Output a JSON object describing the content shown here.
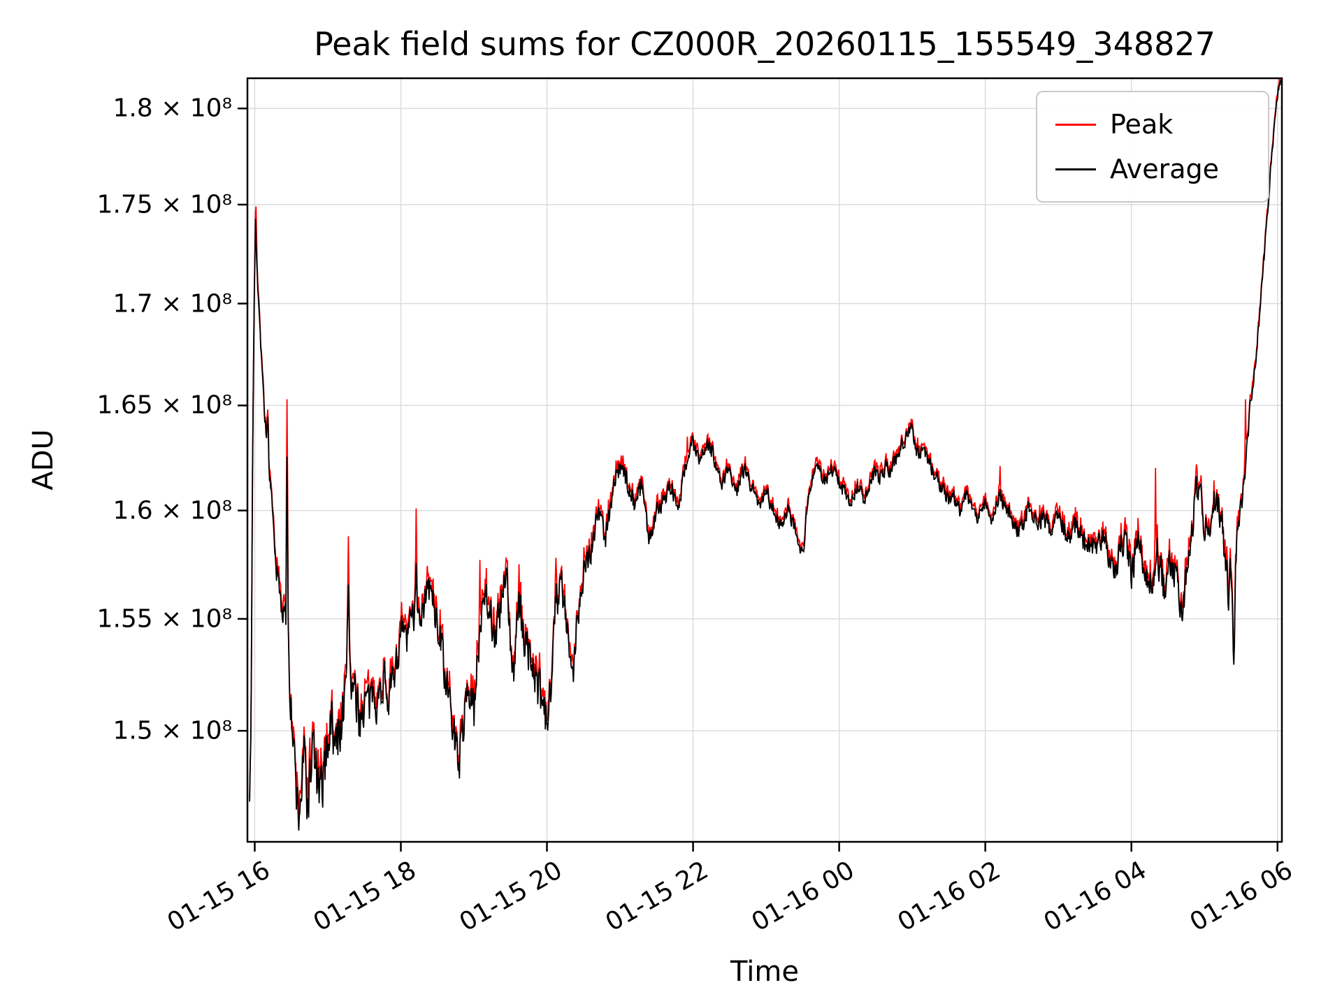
{
  "title": "Peak field sums for CZ000R_20260115_155549_348827",
  "chart_data": {
    "type": "line",
    "title": "Peak field sums for CZ000R_20260115_155549_348827",
    "xlabel": "Time",
    "ylabel": "ADU",
    "y_scale": "log",
    "grid": true,
    "legend_position": "upper right",
    "ylim": [
      145200000,
      181600000
    ],
    "xlim_hours": [
      15.9,
      30.06
    ],
    "x_ticks": [
      {
        "hour": 16,
        "label": "01-15 16"
      },
      {
        "hour": 18,
        "label": "01-15 18"
      },
      {
        "hour": 20,
        "label": "01-15 20"
      },
      {
        "hour": 22,
        "label": "01-15 22"
      },
      {
        "hour": 24,
        "label": "01-16 00"
      },
      {
        "hour": 26,
        "label": "01-16 02"
      },
      {
        "hour": 28,
        "label": "01-16 04"
      },
      {
        "hour": 30,
        "label": "01-16 06"
      }
    ],
    "y_ticks": [
      {
        "value": 180000000,
        "label": "1.8 × 10⁸"
      },
      {
        "value": 175000000,
        "label": "1.75 × 10⁸"
      },
      {
        "value": 170000000,
        "label": "1.7 × 10⁸"
      },
      {
        "value": 165000000,
        "label": "1.65 × 10⁸"
      },
      {
        "value": 160000000,
        "label": "1.6 × 10⁸"
      },
      {
        "value": 155000000,
        "label": "1.55 × 10⁸"
      },
      {
        "value": 150000000,
        "label": "1.5 × 10⁸"
      }
    ],
    "legend": [
      {
        "name": "Peak",
        "color": "#ff0000"
      },
      {
        "name": "Average",
        "color": "#000000"
      }
    ],
    "value_unit": 100000000,
    "sample_step_hours": 0.008,
    "noise_seed": 7,
    "peak_offset": 0.0015,
    "average_anchors": [
      [
        15.93,
        1.472
      ],
      [
        15.95,
        1.5
      ],
      [
        15.97,
        1.62
      ],
      [
        15.99,
        1.695
      ],
      [
        16.01,
        1.745
      ],
      [
        16.03,
        1.72
      ],
      [
        16.06,
        1.695
      ],
      [
        16.08,
        1.68
      ],
      [
        16.1,
        1.672
      ],
      [
        16.13,
        1.648
      ],
      [
        16.16,
        1.635
      ],
      [
        16.18,
        1.645
      ],
      [
        16.2,
        1.615
      ],
      [
        16.24,
        1.6
      ],
      [
        16.28,
        1.577
      ],
      [
        16.32,
        1.568
      ],
      [
        16.36,
        1.557
      ],
      [
        16.4,
        1.552
      ],
      [
        16.43,
        1.548
      ],
      [
        16.44,
        1.638
      ],
      [
        16.46,
        1.545
      ],
      [
        16.48,
        1.52
      ],
      [
        16.52,
        1.497
      ],
      [
        16.56,
        1.478
      ],
      [
        16.6,
        1.462
      ],
      [
        16.64,
        1.475
      ],
      [
        16.68,
        1.49
      ],
      [
        16.72,
        1.468
      ],
      [
        16.76,
        1.48
      ],
      [
        16.8,
        1.495
      ],
      [
        16.85,
        1.478
      ],
      [
        16.9,
        1.469
      ],
      [
        16.95,
        1.482
      ],
      [
        17.0,
        1.498
      ],
      [
        17.05,
        1.505
      ],
      [
        17.1,
        1.492
      ],
      [
        17.15,
        1.499
      ],
      [
        17.2,
        1.508
      ],
      [
        17.25,
        1.515
      ],
      [
        17.28,
        1.568
      ],
      [
        17.31,
        1.525
      ],
      [
        17.38,
        1.512
      ],
      [
        17.43,
        1.505
      ],
      [
        17.48,
        1.51
      ],
      [
        17.53,
        1.515
      ],
      [
        17.58,
        1.508
      ],
      [
        17.63,
        1.52
      ],
      [
        17.68,
        1.513
      ],
      [
        17.73,
        1.518
      ],
      [
        17.78,
        1.525
      ],
      [
        17.83,
        1.515
      ],
      [
        17.88,
        1.52
      ],
      [
        17.93,
        1.53
      ],
      [
        17.98,
        1.538
      ],
      [
        18.03,
        1.545
      ],
      [
        18.08,
        1.54
      ],
      [
        18.13,
        1.548
      ],
      [
        18.18,
        1.552
      ],
      [
        18.21,
        1.578
      ],
      [
        18.24,
        1.55
      ],
      [
        18.3,
        1.555
      ],
      [
        18.35,
        1.56
      ],
      [
        18.4,
        1.565
      ],
      [
        18.45,
        1.555
      ],
      [
        18.5,
        1.548
      ],
      [
        18.55,
        1.54
      ],
      [
        18.6,
        1.525
      ],
      [
        18.65,
        1.515
      ],
      [
        18.7,
        1.505
      ],
      [
        18.75,
        1.495
      ],
      [
        18.8,
        1.488
      ],
      [
        18.85,
        1.5
      ],
      [
        18.9,
        1.52
      ],
      [
        18.95,
        1.515
      ],
      [
        19.0,
        1.508
      ],
      [
        19.05,
        1.53
      ],
      [
        19.1,
        1.555
      ],
      [
        19.15,
        1.565
      ],
      [
        19.2,
        1.558
      ],
      [
        19.25,
        1.548
      ],
      [
        19.3,
        1.543
      ],
      [
        19.35,
        1.55
      ],
      [
        19.4,
        1.562
      ],
      [
        19.45,
        1.568
      ],
      [
        19.5,
        1.535
      ],
      [
        19.55,
        1.528
      ],
      [
        19.6,
        1.555
      ],
      [
        19.65,
        1.548
      ],
      [
        19.7,
        1.54
      ],
      [
        19.75,
        1.535
      ],
      [
        19.8,
        1.53
      ],
      [
        19.85,
        1.522
      ],
      [
        19.9,
        1.515
      ],
      [
        19.95,
        1.508
      ],
      [
        20.0,
        1.502
      ],
      [
        20.05,
        1.52
      ],
      [
        20.1,
        1.558
      ],
      [
        20.15,
        1.562
      ],
      [
        20.2,
        1.565
      ],
      [
        20.25,
        1.55
      ],
      [
        20.3,
        1.538
      ],
      [
        20.35,
        1.518
      ],
      [
        20.4,
        1.545
      ],
      [
        20.45,
        1.562
      ],
      [
        20.5,
        1.572
      ],
      [
        20.55,
        1.578
      ],
      [
        20.6,
        1.582
      ],
      [
        20.65,
        1.59
      ],
      [
        20.7,
        1.6
      ],
      [
        20.75,
        1.595
      ],
      [
        20.8,
        1.588
      ],
      [
        20.85,
        1.598
      ],
      [
        20.9,
        1.61
      ],
      [
        20.95,
        1.617
      ],
      [
        21.0,
        1.62
      ],
      [
        21.05,
        1.617
      ],
      [
        21.1,
        1.613
      ],
      [
        21.15,
        1.608
      ],
      [
        21.2,
        1.604
      ],
      [
        21.25,
        1.608
      ],
      [
        21.3,
        1.612
      ],
      [
        21.35,
        1.6
      ],
      [
        21.4,
        1.585
      ],
      [
        21.45,
        1.592
      ],
      [
        21.5,
        1.6
      ],
      [
        21.55,
        1.603
      ],
      [
        21.6,
        1.606
      ],
      [
        21.65,
        1.61
      ],
      [
        21.7,
        1.612
      ],
      [
        21.75,
        1.605
      ],
      [
        21.8,
        1.6
      ],
      [
        21.85,
        1.612
      ],
      [
        21.9,
        1.622
      ],
      [
        21.95,
        1.628
      ],
      [
        22.0,
        1.632
      ],
      [
        22.05,
        1.626
      ],
      [
        22.1,
        1.622
      ],
      [
        22.15,
        1.628
      ],
      [
        22.2,
        1.632
      ],
      [
        22.25,
        1.628
      ],
      [
        22.3,
        1.624
      ],
      [
        22.35,
        1.618
      ],
      [
        22.4,
        1.613
      ],
      [
        22.45,
        1.618
      ],
      [
        22.5,
        1.622
      ],
      [
        22.55,
        1.612
      ],
      [
        22.6,
        1.608
      ],
      [
        22.65,
        1.615
      ],
      [
        22.7,
        1.62
      ],
      [
        22.75,
        1.615
      ],
      [
        22.8,
        1.612
      ],
      [
        22.85,
        1.606
      ],
      [
        22.9,
        1.602
      ],
      [
        22.95,
        1.607
      ],
      [
        23.0,
        1.61
      ],
      [
        23.05,
        1.604
      ],
      [
        23.1,
        1.6
      ],
      [
        23.15,
        1.596
      ],
      [
        23.2,
        1.592
      ],
      [
        23.25,
        1.598
      ],
      [
        23.3,
        1.602
      ],
      [
        23.35,
        1.596
      ],
      [
        23.4,
        1.592
      ],
      [
        23.45,
        1.586
      ],
      [
        23.5,
        1.578
      ],
      [
        23.55,
        1.596
      ],
      [
        23.6,
        1.612
      ],
      [
        23.65,
        1.618
      ],
      [
        23.7,
        1.622
      ],
      [
        23.75,
        1.617
      ],
      [
        23.8,
        1.613
      ],
      [
        23.85,
        1.617
      ],
      [
        23.9,
        1.62
      ],
      [
        23.95,
        1.616
      ],
      [
        24.0,
        1.613
      ],
      [
        24.05,
        1.61
      ],
      [
        24.1,
        1.607
      ],
      [
        24.15,
        1.604
      ],
      [
        24.2,
        1.608
      ],
      [
        24.25,
        1.612
      ],
      [
        24.3,
        1.608
      ],
      [
        24.35,
        1.605
      ],
      [
        24.4,
        1.61
      ],
      [
        24.45,
        1.615
      ],
      [
        24.5,
        1.618
      ],
      [
        24.55,
        1.614
      ],
      [
        24.6,
        1.618
      ],
      [
        24.65,
        1.622
      ],
      [
        24.7,
        1.618
      ],
      [
        24.75,
        1.622
      ],
      [
        24.8,
        1.626
      ],
      [
        24.85,
        1.63
      ],
      [
        24.9,
        1.634
      ],
      [
        24.95,
        1.638
      ],
      [
        25.0,
        1.64
      ],
      [
        25.05,
        1.63
      ],
      [
        25.1,
        1.625
      ],
      [
        25.15,
        1.63
      ],
      [
        25.2,
        1.626
      ],
      [
        25.25,
        1.622
      ],
      [
        25.3,
        1.618
      ],
      [
        25.35,
        1.614
      ],
      [
        25.4,
        1.612
      ],
      [
        25.45,
        1.608
      ],
      [
        25.5,
        1.605
      ],
      [
        25.55,
        1.608
      ],
      [
        25.6,
        1.604
      ],
      [
        25.65,
        1.6
      ],
      [
        25.7,
        1.605
      ],
      [
        25.75,
        1.608
      ],
      [
        25.8,
        1.604
      ],
      [
        25.85,
        1.6
      ],
      [
        25.9,
        1.597
      ],
      [
        25.95,
        1.6
      ],
      [
        26.0,
        1.603
      ],
      [
        26.05,
        1.6
      ],
      [
        26.1,
        1.597
      ],
      [
        26.15,
        1.6
      ],
      [
        26.2,
        1.608
      ],
      [
        26.25,
        1.603
      ],
      [
        26.3,
        1.6
      ],
      [
        26.35,
        1.597
      ],
      [
        26.4,
        1.594
      ],
      [
        26.45,
        1.59
      ],
      [
        26.5,
        1.593
      ],
      [
        26.55,
        1.597
      ],
      [
        26.6,
        1.6
      ],
      [
        26.65,
        1.596
      ],
      [
        26.7,
        1.592
      ],
      [
        26.75,
        1.595
      ],
      [
        26.8,
        1.598
      ],
      [
        26.85,
        1.594
      ],
      [
        26.9,
        1.59
      ],
      [
        26.95,
        1.594
      ],
      [
        27.0,
        1.598
      ],
      [
        27.05,
        1.594
      ],
      [
        27.1,
        1.59
      ],
      [
        27.15,
        1.586
      ],
      [
        27.2,
        1.59
      ],
      [
        27.25,
        1.594
      ],
      [
        27.3,
        1.59
      ],
      [
        27.35,
        1.586
      ],
      [
        27.4,
        1.582
      ],
      [
        27.45,
        1.586
      ],
      [
        27.5,
        1.582
      ],
      [
        27.55,
        1.586
      ],
      [
        27.6,
        1.59
      ],
      [
        27.65,
        1.584
      ],
      [
        27.7,
        1.578
      ],
      [
        27.75,
        1.572
      ],
      [
        27.8,
        1.576
      ],
      [
        27.85,
        1.582
      ],
      [
        27.9,
        1.586
      ],
      [
        27.95,
        1.578
      ],
      [
        28.0,
        1.572
      ],
      [
        28.05,
        1.58
      ],
      [
        28.1,
        1.588
      ],
      [
        28.15,
        1.58
      ],
      [
        28.2,
        1.572
      ],
      [
        28.25,
        1.565
      ],
      [
        28.3,
        1.572
      ],
      [
        28.35,
        1.58
      ],
      [
        28.4,
        1.572
      ],
      [
        28.45,
        1.562
      ],
      [
        28.5,
        1.57
      ],
      [
        28.55,
        1.578
      ],
      [
        28.6,
        1.57
      ],
      [
        28.65,
        1.562
      ],
      [
        28.7,
        1.556
      ],
      [
        28.75,
        1.57
      ],
      [
        28.8,
        1.585
      ],
      [
        28.85,
        1.6
      ],
      [
        28.9,
        1.612
      ],
      [
        28.95,
        1.605
      ],
      [
        29.0,
        1.595
      ],
      [
        29.05,
        1.588
      ],
      [
        29.1,
        1.597
      ],
      [
        29.15,
        1.608
      ],
      [
        29.2,
        1.6
      ],
      [
        29.25,
        1.59
      ],
      [
        29.3,
        1.572
      ],
      [
        29.33,
        1.558
      ],
      [
        29.36,
        1.578
      ],
      [
        29.4,
        1.527
      ],
      [
        29.43,
        1.578
      ],
      [
        29.46,
        1.59
      ],
      [
        29.5,
        1.6
      ],
      [
        29.55,
        1.615
      ],
      [
        29.58,
        1.63
      ],
      [
        29.62,
        1.645
      ],
      [
        29.66,
        1.658
      ],
      [
        29.7,
        1.672
      ],
      [
        29.74,
        1.688
      ],
      [
        29.78,
        1.705
      ],
      [
        29.82,
        1.725
      ],
      [
        29.86,
        1.745
      ],
      [
        29.9,
        1.765
      ],
      [
        29.94,
        1.782
      ],
      [
        29.98,
        1.8
      ],
      [
        30.02,
        1.812
      ],
      [
        30.05,
        1.815
      ]
    ],
    "noise_amplitude_anchors": [
      [
        15.93,
        0.003
      ],
      [
        16.2,
        0.004
      ],
      [
        16.45,
        0.008
      ],
      [
        16.6,
        0.012
      ],
      [
        17.2,
        0.012
      ],
      [
        17.8,
        0.008
      ],
      [
        18.3,
        0.008
      ],
      [
        18.9,
        0.009
      ],
      [
        19.5,
        0.01
      ],
      [
        20.0,
        0.01
      ],
      [
        20.45,
        0.008
      ],
      [
        20.9,
        0.005
      ],
      [
        21.6,
        0.0045
      ],
      [
        22.5,
        0.0035
      ],
      [
        23.5,
        0.0035
      ],
      [
        24.5,
        0.0035
      ],
      [
        25.5,
        0.0035
      ],
      [
        26.3,
        0.004
      ],
      [
        27.0,
        0.005
      ],
      [
        27.6,
        0.006
      ],
      [
        28.1,
        0.008
      ],
      [
        28.7,
        0.008
      ],
      [
        29.1,
        0.007
      ],
      [
        29.35,
        0.008
      ],
      [
        29.5,
        0.005
      ],
      [
        29.8,
        0.003
      ],
      [
        30.05,
        0.002
      ]
    ],
    "peak_spikes": [
      [
        16.02,
        1.749
      ],
      [
        16.44,
        1.653
      ],
      [
        17.28,
        1.588
      ],
      [
        18.21,
        1.601
      ],
      [
        19.08,
        1.577
      ],
      [
        19.44,
        1.578
      ],
      [
        19.62,
        1.575
      ],
      [
        20.12,
        1.578
      ],
      [
        21.92,
        1.635
      ],
      [
        22.2,
        1.636
      ],
      [
        25.0,
        1.643
      ],
      [
        26.2,
        1.621
      ],
      [
        28.33,
        1.62
      ],
      [
        28.9,
        1.62
      ],
      [
        29.56,
        1.653
      ]
    ]
  }
}
